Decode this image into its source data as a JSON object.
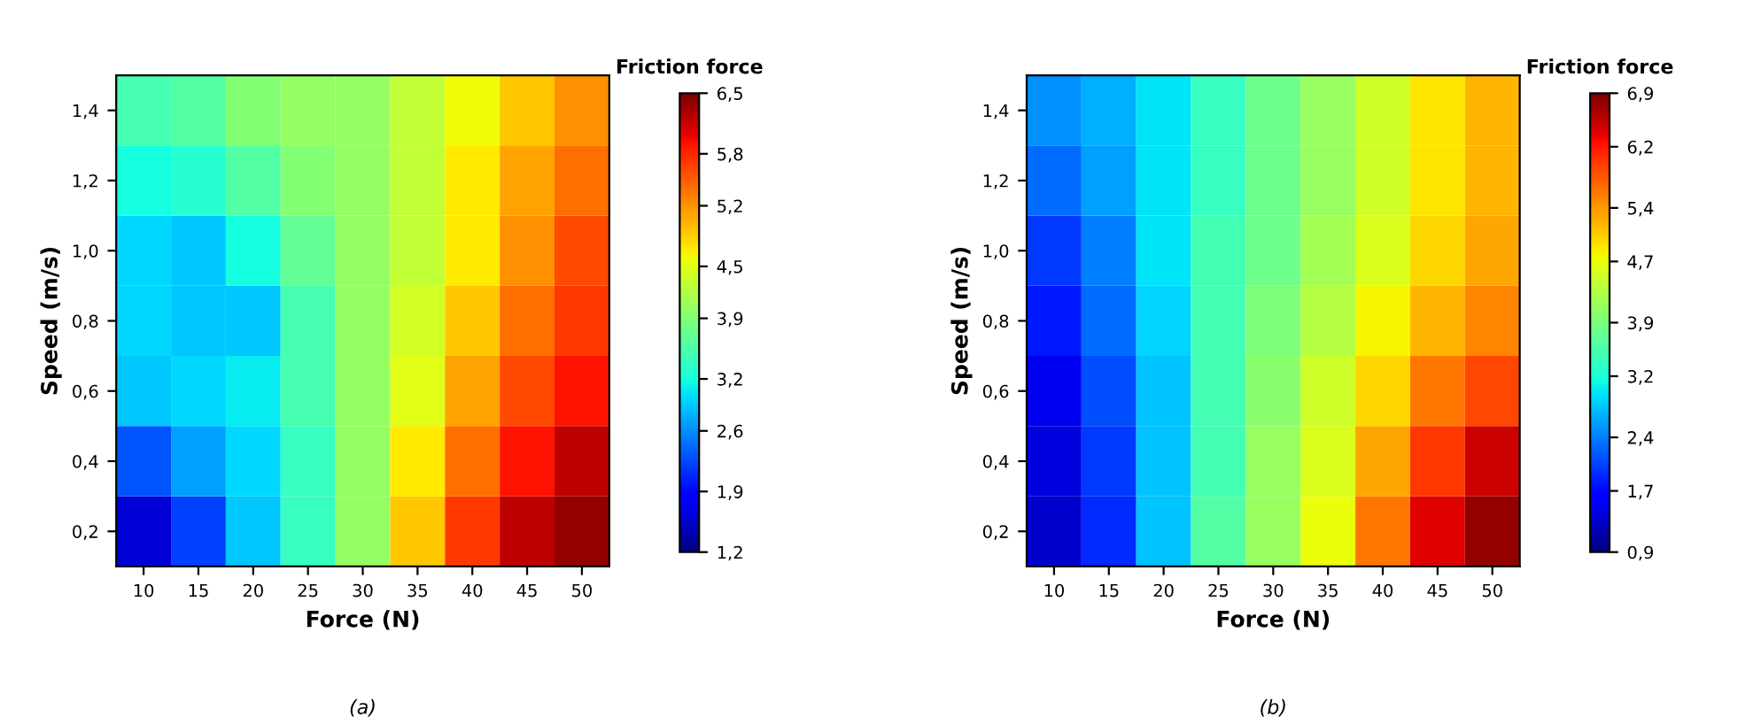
{
  "chart_data": [
    {
      "type": "heatmap",
      "xlabel": "Force (N)",
      "ylabel": "Speed (m/s)",
      "clabel": "Friction force",
      "annotations": [
        "(a)"
      ],
      "categories": [
        "10",
        "15",
        "20",
        "25",
        "30",
        "35",
        "40",
        "45",
        "50"
      ],
      "y_categories": [
        "1,4",
        "1,2",
        "1,0",
        "0,8",
        "0,6",
        "0,4",
        "0,2"
      ],
      "cells": [
        [
          3.5,
          3.6,
          3.9,
          4.0,
          4.0,
          4.3,
          4.6,
          4.9,
          5.2
        ],
        [
          3.2,
          3.3,
          3.6,
          3.9,
          4.0,
          4.3,
          4.7,
          5.1,
          5.4
        ],
        [
          3.0,
          2.9,
          3.2,
          3.7,
          4.0,
          4.3,
          4.7,
          5.2,
          5.6
        ],
        [
          3.0,
          2.9,
          2.9,
          3.5,
          4.0,
          4.4,
          4.9,
          5.4,
          5.7
        ],
        [
          2.9,
          3.0,
          3.1,
          3.5,
          4.0,
          4.5,
          5.1,
          5.6,
          5.9
        ],
        [
          2.3,
          2.7,
          3.0,
          3.4,
          4.0,
          4.7,
          5.4,
          5.9,
          6.2
        ],
        [
          1.6,
          2.2,
          2.9,
          3.4,
          4.0,
          4.9,
          5.7,
          6.2,
          6.4
        ]
      ],
      "clim": [
        1.2,
        6.5
      ],
      "cticks": [
        {
          "value": 1.2,
          "label": "1,2"
        },
        {
          "value": 1.9,
          "label": "1,9"
        },
        {
          "value": 2.6,
          "label": "2,6"
        },
        {
          "value": 3.2,
          "label": "3,2"
        },
        {
          "value": 3.9,
          "label": "3,9"
        },
        {
          "value": 4.5,
          "label": "4,5"
        },
        {
          "value": 5.2,
          "label": "5,2"
        },
        {
          "value": 5.8,
          "label": "5,8"
        },
        {
          "value": 6.5,
          "label": "6,5"
        }
      ]
    },
    {
      "type": "heatmap",
      "xlabel": "Force (N)",
      "ylabel": "Speed (m/s)",
      "clabel": "Friction force",
      "annotations": [
        "(b)"
      ],
      "categories": [
        "10",
        "15",
        "20",
        "25",
        "30",
        "35",
        "40",
        "45",
        "50"
      ],
      "y_categories": [
        "1,4",
        "1,2",
        "1,0",
        "0,8",
        "0,6",
        "0,4",
        "0,2"
      ],
      "cells": [
        [
          2.5,
          2.7,
          3.0,
          3.4,
          3.8,
          4.1,
          4.5,
          4.9,
          5.2
        ],
        [
          2.3,
          2.6,
          3.0,
          3.4,
          3.8,
          4.1,
          4.5,
          4.9,
          5.2
        ],
        [
          2.0,
          2.4,
          3.0,
          3.5,
          3.8,
          4.2,
          4.6,
          5.0,
          5.3
        ],
        [
          1.8,
          2.3,
          2.9,
          3.5,
          3.9,
          4.3,
          4.8,
          5.2,
          5.5
        ],
        [
          1.5,
          2.1,
          2.8,
          3.5,
          4.0,
          4.5,
          5.0,
          5.6,
          5.9
        ],
        [
          1.4,
          2.0,
          2.8,
          3.5,
          4.1,
          4.6,
          5.3,
          6.0,
          6.5
        ],
        [
          1.3,
          1.9,
          2.8,
          3.6,
          4.1,
          4.7,
          5.6,
          6.4,
          6.8
        ]
      ],
      "clim": [
        0.9,
        6.9
      ],
      "cticks": [
        {
          "value": 0.9,
          "label": "0,9"
        },
        {
          "value": 1.7,
          "label": "1,7"
        },
        {
          "value": 2.4,
          "label": "2,4"
        },
        {
          "value": 3.2,
          "label": "3,2"
        },
        {
          "value": 3.9,
          "label": "3,9"
        },
        {
          "value": 4.7,
          "label": "4,7"
        },
        {
          "value": 5.4,
          "label": "5,4"
        },
        {
          "value": 6.2,
          "label": "6,2"
        },
        {
          "value": 6.9,
          "label": "6,9"
        }
      ]
    }
  ]
}
